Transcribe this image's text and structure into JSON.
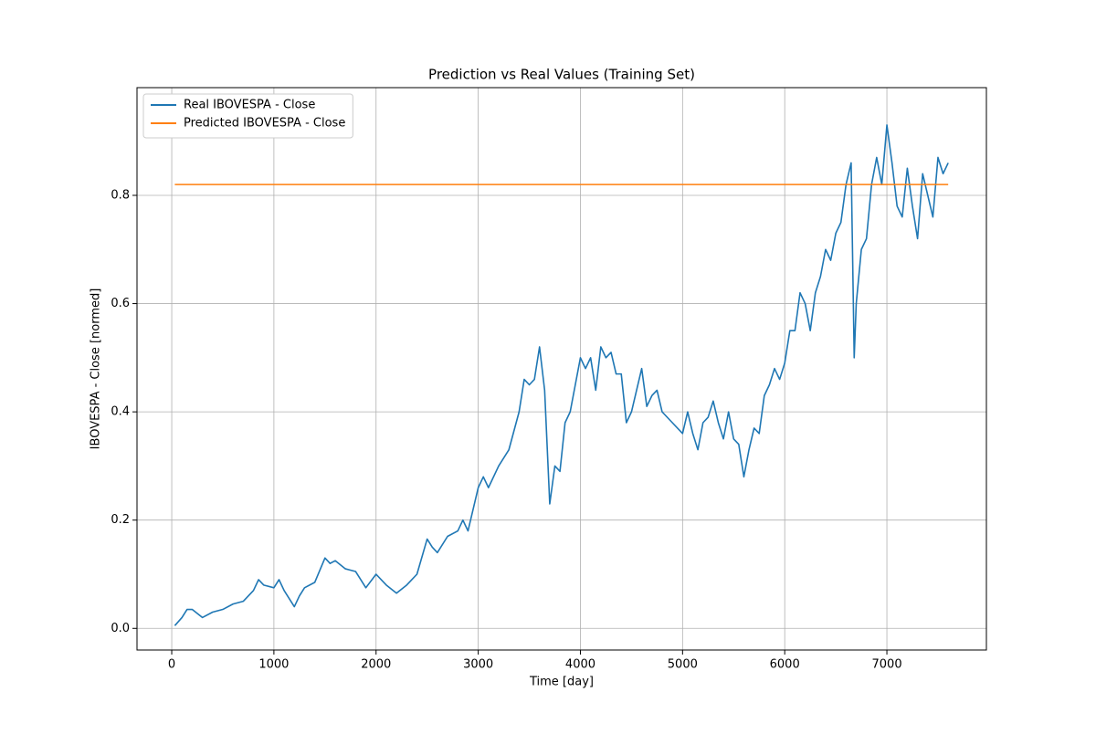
{
  "chart_data": {
    "type": "line",
    "title": "Prediction vs Real Values (Training Set)",
    "x_label": "Time [day]",
    "y_label": "IBOVESPA - Close [normed]",
    "xlim": [
      -340,
      7974
    ],
    "ylim": [
      -0.04,
      0.999
    ],
    "xticks": [
      0,
      1000,
      2000,
      3000,
      4000,
      5000,
      6000,
      7000
    ],
    "yticks": [
      {
        "value": 0,
        "label": "0.0"
      },
      0.2,
      0.4,
      0.6,
      0.8
    ],
    "grid": true,
    "legend": "upper-left",
    "series": [
      {
        "name": "Real IBOVESPA - Close",
        "color": "#1f77b4",
        "x": [
          30,
          100,
          150,
          200,
          300,
          400,
          500,
          600,
          700,
          800,
          850,
          900,
          1000,
          1050,
          1100,
          1200,
          1250,
          1300,
          1400,
          1500,
          1550,
          1600,
          1700,
          1800,
          1900,
          2000,
          2100,
          2200,
          2300,
          2400,
          2500,
          2550,
          2600,
          2700,
          2800,
          2850,
          2900,
          3000,
          3050,
          3100,
          3200,
          3300,
          3400,
          3450,
          3500,
          3550,
          3600,
          3650,
          3700,
          3750,
          3800,
          3850,
          3900,
          3950,
          4000,
          4050,
          4100,
          4150,
          4200,
          4250,
          4300,
          4350,
          4400,
          4450,
          4500,
          4550,
          4600,
          4650,
          4700,
          4750,
          4800,
          4900,
          5000,
          5050,
          5100,
          5150,
          5200,
          5250,
          5300,
          5350,
          5400,
          5450,
          5500,
          5550,
          5600,
          5650,
          5700,
          5750,
          5800,
          5850,
          5900,
          5950,
          6000,
          6050,
          6100,
          6150,
          6200,
          6250,
          6300,
          6350,
          6400,
          6450,
          6500,
          6550,
          6600,
          6650,
          6680,
          6700,
          6750,
          6800,
          6850,
          6900,
          6950,
          7000,
          7050,
          7100,
          7150,
          7200,
          7250,
          7300,
          7350,
          7400,
          7450,
          7500,
          7550,
          7600
        ],
        "values": [
          0.005,
          0.02,
          0.035,
          0.035,
          0.02,
          0.03,
          0.035,
          0.045,
          0.05,
          0.07,
          0.09,
          0.08,
          0.075,
          0.09,
          0.07,
          0.04,
          0.06,
          0.075,
          0.085,
          0.13,
          0.12,
          0.125,
          0.11,
          0.105,
          0.075,
          0.1,
          0.08,
          0.065,
          0.08,
          0.1,
          0.165,
          0.15,
          0.14,
          0.17,
          0.18,
          0.2,
          0.18,
          0.26,
          0.28,
          0.26,
          0.3,
          0.33,
          0.4,
          0.46,
          0.45,
          0.46,
          0.52,
          0.44,
          0.23,
          0.3,
          0.29,
          0.38,
          0.4,
          0.45,
          0.5,
          0.48,
          0.5,
          0.44,
          0.52,
          0.5,
          0.51,
          0.47,
          0.47,
          0.38,
          0.4,
          0.44,
          0.48,
          0.41,
          0.43,
          0.44,
          0.4,
          0.38,
          0.36,
          0.4,
          0.36,
          0.33,
          0.38,
          0.39,
          0.42,
          0.38,
          0.35,
          0.4,
          0.35,
          0.34,
          0.28,
          0.33,
          0.37,
          0.36,
          0.43,
          0.45,
          0.48,
          0.46,
          0.49,
          0.55,
          0.55,
          0.62,
          0.6,
          0.55,
          0.62,
          0.65,
          0.7,
          0.68,
          0.73,
          0.75,
          0.82,
          0.86,
          0.5,
          0.6,
          0.7,
          0.72,
          0.82,
          0.87,
          0.82,
          0.93,
          0.86,
          0.78,
          0.76,
          0.85,
          0.78,
          0.72,
          0.84,
          0.8,
          0.76,
          0.87,
          0.84,
          0.86
        ]
      },
      {
        "name": "Predicted IBOVESPA - Close",
        "color": "#ff7f0e",
        "x": [
          30,
          7600
        ],
        "values": [
          0.82,
          0.82
        ]
      }
    ]
  }
}
